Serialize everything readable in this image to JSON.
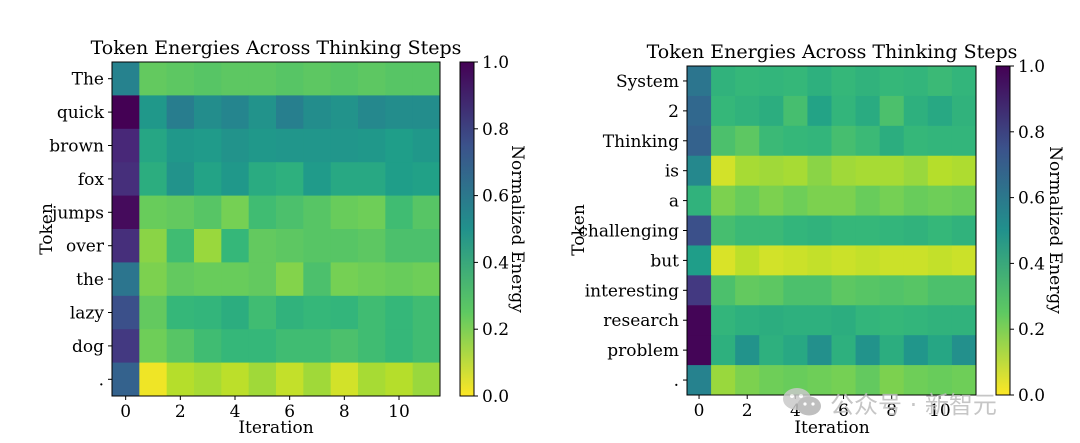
{
  "watermark": {
    "text": "公众号 · 新智元",
    "icon": "wechat-icon"
  },
  "chart_data": [
    {
      "type": "heatmap",
      "title": "Token Energies Across Thinking Steps",
      "xlabel": "Iteration",
      "ylabel": "Token",
      "x_ticks": [
        "0",
        "2",
        "4",
        "6",
        "8",
        "10"
      ],
      "tokens": [
        "The",
        "quick",
        "brown",
        "fox",
        "jumps",
        "over",
        "the",
        "lazy",
        "dog",
        "."
      ],
      "iterations": [
        0,
        1,
        2,
        3,
        4,
        5,
        6,
        7,
        8,
        9,
        10,
        11
      ],
      "values": [
        [
          0.5,
          0.22,
          0.23,
          0.24,
          0.23,
          0.23,
          0.24,
          0.23,
          0.24,
          0.23,
          0.24,
          0.24
        ],
        [
          1.0,
          0.42,
          0.52,
          0.46,
          0.49,
          0.44,
          0.51,
          0.46,
          0.44,
          0.48,
          0.46,
          0.46
        ],
        [
          0.8,
          0.37,
          0.42,
          0.41,
          0.44,
          0.42,
          0.43,
          0.43,
          0.43,
          0.42,
          0.4,
          0.42
        ],
        [
          0.78,
          0.34,
          0.44,
          0.38,
          0.42,
          0.35,
          0.33,
          0.41,
          0.36,
          0.36,
          0.4,
          0.39
        ],
        [
          0.95,
          0.21,
          0.22,
          0.24,
          0.19,
          0.28,
          0.26,
          0.24,
          0.21,
          0.2,
          0.28,
          0.24
        ],
        [
          0.78,
          0.16,
          0.28,
          0.14,
          0.3,
          0.22,
          0.23,
          0.24,
          0.24,
          0.23,
          0.26,
          0.26
        ],
        [
          0.55,
          0.18,
          0.22,
          0.21,
          0.21,
          0.22,
          0.17,
          0.26,
          0.19,
          0.2,
          0.21,
          0.2
        ],
        [
          0.68,
          0.22,
          0.3,
          0.31,
          0.34,
          0.28,
          0.32,
          0.3,
          0.31,
          0.28,
          0.3,
          0.28
        ],
        [
          0.75,
          0.2,
          0.24,
          0.28,
          0.3,
          0.3,
          0.28,
          0.28,
          0.26,
          0.28,
          0.3,
          0.28
        ],
        [
          0.62,
          0.02,
          0.1,
          0.12,
          0.09,
          0.13,
          0.08,
          0.13,
          0.06,
          0.12,
          0.1,
          0.14
        ]
      ],
      "colorbar": {
        "label": "Normalized Energy",
        "ticks": [
          "0.0",
          "0.2",
          "0.4",
          "0.6",
          "0.8",
          "1.0"
        ],
        "range": [
          0,
          1
        ]
      },
      "colormap": "viridis_r"
    },
    {
      "type": "heatmap",
      "title": "Token Energies Across Thinking Steps",
      "xlabel": "Iteration",
      "ylabel": "Token",
      "x_ticks": [
        "0",
        "2",
        "4",
        "6",
        "8",
        "10"
      ],
      "tokens": [
        "System",
        "2",
        "Thinking",
        "is",
        "a",
        "challenging",
        "but",
        "interesting",
        "research",
        "problem",
        "."
      ],
      "iterations": [
        0,
        1,
        2,
        3,
        4,
        5,
        6,
        7,
        8,
        9,
        10,
        11
      ],
      "values": [
        [
          0.55,
          0.32,
          0.3,
          0.31,
          0.3,
          0.33,
          0.3,
          0.32,
          0.3,
          0.31,
          0.29,
          0.31
        ],
        [
          0.6,
          0.3,
          0.32,
          0.34,
          0.27,
          0.38,
          0.31,
          0.35,
          0.26,
          0.33,
          0.36,
          0.32
        ],
        [
          0.62,
          0.26,
          0.23,
          0.29,
          0.3,
          0.31,
          0.27,
          0.29,
          0.34,
          0.3,
          0.31,
          0.31
        ],
        [
          0.48,
          0.06,
          0.12,
          0.13,
          0.12,
          0.16,
          0.13,
          0.12,
          0.12,
          0.14,
          0.1,
          0.11
        ],
        [
          0.32,
          0.18,
          0.21,
          0.18,
          0.2,
          0.18,
          0.18,
          0.21,
          0.19,
          0.21,
          0.2,
          0.21
        ],
        [
          0.68,
          0.27,
          0.29,
          0.29,
          0.31,
          0.32,
          0.3,
          0.3,
          0.31,
          0.32,
          0.3,
          0.32
        ],
        [
          0.4,
          0.05,
          0.09,
          0.06,
          0.07,
          0.08,
          0.07,
          0.08,
          0.07,
          0.07,
          0.08,
          0.07
        ],
        [
          0.75,
          0.26,
          0.22,
          0.23,
          0.26,
          0.26,
          0.23,
          0.24,
          0.25,
          0.24,
          0.26,
          0.26
        ],
        [
          0.98,
          0.31,
          0.33,
          0.34,
          0.33,
          0.33,
          0.34,
          0.31,
          0.3,
          0.31,
          0.32,
          0.32
        ],
        [
          0.98,
          0.33,
          0.44,
          0.33,
          0.36,
          0.45,
          0.33,
          0.44,
          0.34,
          0.43,
          0.37,
          0.45
        ],
        [
          0.5,
          0.14,
          0.18,
          0.2,
          0.21,
          0.2,
          0.19,
          0.22,
          0.18,
          0.2,
          0.21,
          0.2
        ]
      ],
      "colorbar": {
        "label": "Normalized Energy",
        "ticks": [
          "0.0",
          "0.2",
          "0.4",
          "0.6",
          "0.8",
          "1.0"
        ],
        "range": [
          0,
          1
        ]
      },
      "colormap": "viridis_r"
    }
  ]
}
